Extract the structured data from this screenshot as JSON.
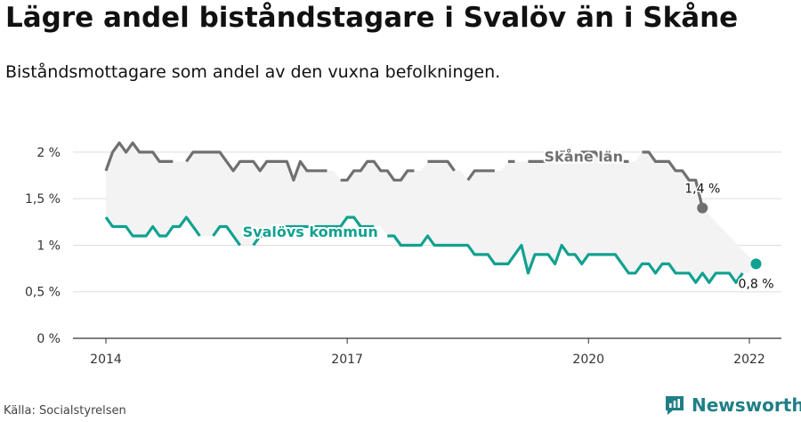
{
  "title": "Lägre andel biståndstagare i Svalöv än i Skåne",
  "subtitle": "Biståndsmottagare som andel av den vuxna befolkningen.",
  "source": "Källa: Socialstyrelsen",
  "brand": "Newsworthy",
  "colors": {
    "skane": "#707070",
    "svalov": "#12a190",
    "band": "#f3f3f3",
    "grid": "#dddddd",
    "brand": "#1f7f86"
  },
  "chart_data": {
    "type": "line",
    "title": "Lägre andel biståndstagare i Svalöv än i Skåne",
    "ylim": [
      0,
      2.2
    ],
    "y_ticks": [
      0,
      0.5,
      1,
      1.5,
      2
    ],
    "y_tick_labels": [
      "0 %",
      "0,5 %",
      "1 %",
      "1,5 %",
      "2 %"
    ],
    "x_ticks": [
      2014,
      2017,
      2020,
      2022
    ],
    "x_tick_labels": [
      "2014",
      "2017",
      "2020",
      "2022"
    ],
    "xlim": [
      2014,
      2022
    ],
    "grid": true,
    "series": [
      {
        "name": "Skåne län",
        "color": "#707070",
        "end_label": "1,4 %",
        "x_start": 2014.0,
        "step": 0.08333,
        "values": [
          1.8,
          2.0,
          2.1,
          2.0,
          2.1,
          2.0,
          2.0,
          2.0,
          1.9,
          1.9,
          1.9,
          null,
          1.9,
          2.0,
          2.0,
          2.0,
          2.0,
          2.0,
          1.9,
          1.8,
          1.9,
          1.9,
          1.9,
          1.8,
          1.9,
          1.9,
          1.9,
          1.9,
          1.7,
          1.9,
          1.8,
          1.8,
          1.8,
          1.8,
          null,
          1.7,
          1.7,
          1.8,
          1.8,
          1.9,
          1.9,
          1.8,
          1.8,
          1.7,
          1.7,
          1.8,
          1.8,
          null,
          1.9,
          1.9,
          1.9,
          1.9,
          1.8,
          null,
          1.7,
          1.8,
          1.8,
          1.8,
          1.8,
          null,
          1.9,
          1.9,
          null,
          1.9,
          1.9,
          1.9,
          1.9,
          2.0,
          2.0,
          2.0,
          1.9,
          2.0,
          2.0,
          2.0,
          1.9,
          1.9,
          1.9,
          1.9,
          1.9,
          null,
          2.0,
          2.0,
          1.9,
          1.9,
          1.9,
          1.8,
          1.8,
          1.7,
          1.7,
          1.4
        ],
        "label": "Skåne län",
        "label_pos": [
          2019.45,
          1.9
        ]
      },
      {
        "name": "Svalövs kommun",
        "color": "#12a190",
        "end_label": "0,8 %",
        "x_start": 2014.0,
        "step": 0.08333,
        "values": [
          1.3,
          1.2,
          1.2,
          1.2,
          1.1,
          1.1,
          1.1,
          1.2,
          1.1,
          1.1,
          1.2,
          1.2,
          1.3,
          1.2,
          1.1,
          null,
          1.1,
          1.2,
          1.2,
          1.1,
          1.0,
          null,
          1.0,
          1.1,
          1.1,
          1.1,
          1.2,
          1.2,
          1.2,
          1.2,
          1.2,
          1.2,
          1.2,
          1.2,
          1.2,
          1.2,
          1.3,
          1.3,
          1.2,
          1.2,
          1.2,
          null,
          1.1,
          1.1,
          1.0,
          1.0,
          1.0,
          1.0,
          1.1,
          1.0,
          1.0,
          1.0,
          1.0,
          1.0,
          1.0,
          0.9,
          0.9,
          0.9,
          0.8,
          0.8,
          0.8,
          0.9,
          1.0,
          0.7,
          0.9,
          0.9,
          0.9,
          0.8,
          1.0,
          0.9,
          0.9,
          0.8,
          0.9,
          0.9,
          0.9,
          0.9,
          0.9,
          0.8,
          0.7,
          0.7,
          0.8,
          0.8,
          0.7,
          0.8,
          0.8,
          0.7,
          0.7,
          0.7,
          0.6,
          0.7,
          0.6,
          0.7,
          0.7,
          0.7,
          0.6,
          0.7,
          null,
          0.8
        ],
        "label": "Svalövs kommun",
        "label_pos": [
          2015.7,
          1.09
        ]
      }
    ]
  }
}
